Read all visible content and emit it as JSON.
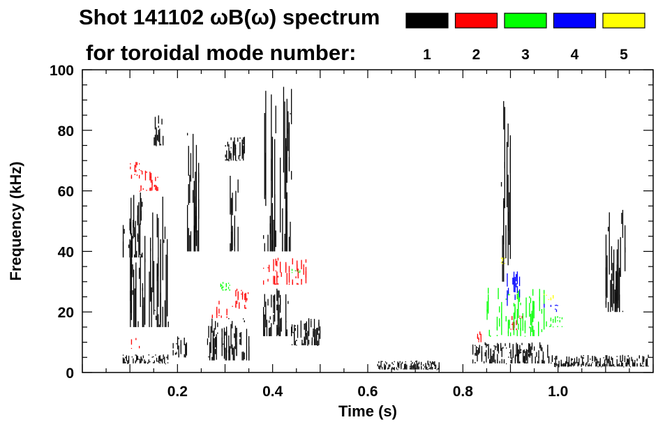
{
  "chart_data": {
    "type": "heatmap",
    "title": "Shot 141102 ωB(ω) spectrum",
    "subtitle": "for toroidal mode number:",
    "xlabel": "Time (s)",
    "ylabel": "Frequency (kHz)",
    "xlim": [
      0.0,
      1.2
    ],
    "ylim": [
      0,
      100
    ],
    "xticks": [
      {
        "value": 0.2,
        "label": "0.2"
      },
      {
        "value": 0.4,
        "label": "0.4"
      },
      {
        "value": 0.6,
        "label": "0.6"
      },
      {
        "value": 0.8,
        "label": "0.8"
      },
      {
        "value": 1.0,
        "label": "1.0"
      }
    ],
    "yticks": [
      {
        "value": 0,
        "label": "0"
      },
      {
        "value": 20,
        "label": "20"
      },
      {
        "value": 40,
        "label": "40"
      },
      {
        "value": 60,
        "label": "60"
      },
      {
        "value": 80,
        "label": "80"
      },
      {
        "value": 100,
        "label": "100"
      }
    ],
    "grid": false,
    "legend_placement": "top-right",
    "legend": [
      {
        "label": "1",
        "color": "#000000"
      },
      {
        "label": "2",
        "color": "#ff0000"
      },
      {
        "label": "3",
        "color": "#00ff00"
      },
      {
        "label": "4",
        "color": "#0000ff"
      },
      {
        "label": "5",
        "color": "#ffff00"
      }
    ],
    "series": [
      {
        "name": "1",
        "color": "#000000",
        "regions": [
          {
            "t": [
              0.085,
              0.125
            ],
            "f": [
              38,
              58
            ]
          },
          {
            "t": [
              0.085,
              0.18
            ],
            "f": [
              3,
              6
            ]
          },
          {
            "t": [
              0.1,
              0.18
            ],
            "f": [
              15,
              60
            ]
          },
          {
            "t": [
              0.15,
              0.17
            ],
            "f": [
              75,
              85
            ]
          },
          {
            "t": [
              0.22,
              0.245
            ],
            "f": [
              40,
              80
            ]
          },
          {
            "t": [
              0.19,
              0.22
            ],
            "f": [
              5,
              12
            ]
          },
          {
            "t": [
              0.26,
              0.35
            ],
            "f": [
              4,
              18
            ]
          },
          {
            "t": [
              0.3,
              0.34
            ],
            "f": [
              70,
              78
            ]
          },
          {
            "t": [
              0.31,
              0.33
            ],
            "f": [
              40,
              65
            ]
          },
          {
            "t": [
              0.38,
              0.44
            ],
            "f": [
              12,
              28
            ]
          },
          {
            "t": [
              0.38,
              0.44
            ],
            "f": [
              40,
              95
            ]
          },
          {
            "t": [
              0.44,
              0.5
            ],
            "f": [
              9,
              18
            ]
          },
          {
            "t": [
              0.82,
              0.98
            ],
            "f": [
              3,
              10
            ]
          },
          {
            "t": [
              0.98,
              1.19
            ],
            "f": [
              2,
              6
            ]
          },
          {
            "t": [
              0.88,
              0.9
            ],
            "f": [
              30,
              90
            ]
          },
          {
            "t": [
              1.1,
              1.14
            ],
            "f": [
              20,
              55
            ]
          },
          {
            "t": [
              0.62,
              0.75
            ],
            "f": [
              1,
              4
            ]
          }
        ]
      },
      {
        "name": "2",
        "color": "#ff0000",
        "regions": [
          {
            "t": [
              0.1,
              0.12
            ],
            "f": [
              64,
              70
            ]
          },
          {
            "t": [
              0.12,
              0.17
            ],
            "f": [
              60,
              67
            ]
          },
          {
            "t": [
              0.27,
              0.31
            ],
            "f": [
              18,
              24
            ]
          },
          {
            "t": [
              0.31,
              0.35
            ],
            "f": [
              21,
              28
            ]
          },
          {
            "t": [
              0.38,
              0.47
            ],
            "f": [
              29,
              38
            ]
          },
          {
            "t": [
              0.83,
              0.85
            ],
            "f": [
              10,
              14
            ]
          },
          {
            "t": [
              0.9,
              0.93
            ],
            "f": [
              14,
              19
            ]
          },
          {
            "t": [
              0.1,
              0.12
            ],
            "f": [
              8,
              12
            ]
          }
        ]
      },
      {
        "name": "3",
        "color": "#00ff00",
        "regions": [
          {
            "t": [
              0.85,
              0.97
            ],
            "f": [
              12,
              28
            ]
          },
          {
            "t": [
              0.97,
              1.01
            ],
            "f": [
              15,
              19
            ]
          },
          {
            "t": [
              0.29,
              0.31
            ],
            "f": [
              27,
              30
            ]
          },
          {
            "t": [
              0.44,
              0.46
            ],
            "f": [
              33,
              35
            ]
          }
        ]
      },
      {
        "name": "4",
        "color": "#0000ff",
        "regions": [
          {
            "t": [
              0.89,
              0.92
            ],
            "f": [
              22,
              34
            ]
          },
          {
            "t": [
              0.97,
              1.0
            ],
            "f": [
              20,
              23
            ]
          }
        ]
      },
      {
        "name": "5",
        "color": "#ffff00",
        "regions": [
          {
            "t": [
              0.97,
              0.99
            ],
            "f": [
              24,
              26
            ]
          },
          {
            "t": [
              0.88,
              0.89
            ],
            "f": [
              36,
              38
            ]
          }
        ]
      }
    ]
  }
}
